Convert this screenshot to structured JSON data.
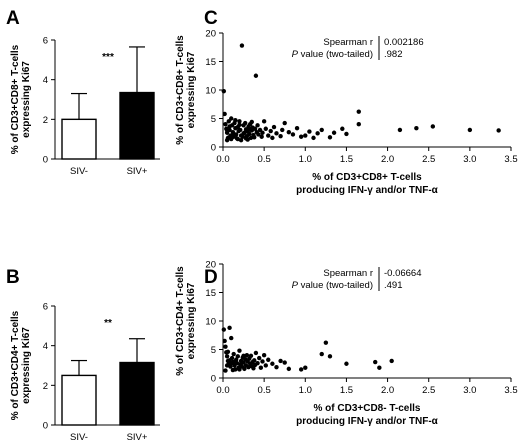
{
  "chart_data": [
    {
      "panel": "A",
      "type": "bar",
      "ylabel": [
        "% of CD3+CD8+ T-cells",
        "expressing Ki67"
      ],
      "categories": [
        "SIV-",
        "SIV+"
      ],
      "values": [
        2.0,
        3.35
      ],
      "errors": [
        1.3,
        2.3
      ],
      "fills": [
        "#ffffff",
        "#000000"
      ],
      "ylim": [
        0,
        6
      ],
      "yticks": [
        0,
        2,
        4,
        6
      ],
      "significance": "***"
    },
    {
      "panel": "B",
      "type": "bar",
      "ylabel": [
        "% of CD3+CD4+ T-cells",
        "expressing Ki67"
      ],
      "categories": [
        "SIV-",
        "SIV+"
      ],
      "values": [
        2.5,
        3.15
      ],
      "errors": [
        0.75,
        1.2
      ],
      "fills": [
        "#ffffff",
        "#000000"
      ],
      "ylim": [
        0,
        6
      ],
      "yticks": [
        0,
        2,
        4,
        6
      ],
      "significance": "**"
    },
    {
      "panel": "C",
      "type": "scatter",
      "xlabel": [
        "% of CD3+CD8+ T-cells",
        "producing IFN-γ and/or TNF-α"
      ],
      "ylabel": [
        "% of CD3+CD8+ T-cells",
        "expressing Ki67"
      ],
      "xlim": [
        0,
        3.5
      ],
      "ylim": [
        0,
        20
      ],
      "xticks": [
        "0.0",
        "0.5",
        "1.0",
        "1.5",
        "2.0",
        "2.5",
        "3.0",
        "3.5"
      ],
      "yticks": [
        0,
        5,
        10,
        15,
        20
      ],
      "stats": {
        "r_label": "Spearman r",
        "p_label_italic": "P",
        "p_label_rest": " value (two-tailed)",
        "r": "0.002186",
        "p": ".982"
      },
      "points": [
        [
          0.01,
          9.8
        ],
        [
          0.02,
          5.8
        ],
        [
          0.03,
          4.0
        ],
        [
          0.04,
          3.2
        ],
        [
          0.05,
          2.5
        ],
        [
          0.06,
          1.6
        ],
        [
          0.07,
          4.5
        ],
        [
          0.08,
          3.0
        ],
        [
          0.09,
          2.0
        ],
        [
          0.1,
          5.0
        ],
        [
          0.11,
          3.8
        ],
        [
          0.12,
          2.6
        ],
        [
          0.13,
          1.8
        ],
        [
          0.14,
          4.2
        ],
        [
          0.15,
          3.3
        ],
        [
          0.16,
          2.2
        ],
        [
          0.17,
          1.5
        ],
        [
          0.18,
          3.5
        ],
        [
          0.19,
          2.8
        ],
        [
          0.2,
          4.5
        ],
        [
          0.21,
          3.0
        ],
        [
          0.22,
          2.0
        ],
        [
          0.23,
          17.8
        ],
        [
          0.24,
          1.8
        ],
        [
          0.25,
          3.8
        ],
        [
          0.26,
          2.5
        ],
        [
          0.27,
          4.2
        ],
        [
          0.28,
          3.1
        ],
        [
          0.29,
          1.9
        ],
        [
          0.3,
          2.7
        ],
        [
          0.31,
          3.6
        ],
        [
          0.32,
          2.3
        ],
        [
          0.33,
          4.0
        ],
        [
          0.34,
          1.6
        ],
        [
          0.35,
          2.9
        ],
        [
          0.36,
          3.4
        ],
        [
          0.37,
          2.1
        ],
        [
          0.38,
          1.7
        ],
        [
          0.39,
          3.2
        ],
        [
          0.4,
          12.5
        ],
        [
          0.41,
          2.6
        ],
        [
          0.42,
          3.8
        ],
        [
          0.43,
          2.2
        ],
        [
          0.45,
          3.0
        ],
        [
          0.47,
          1.8
        ],
        [
          0.48,
          2.5
        ],
        [
          0.5,
          4.5
        ],
        [
          0.52,
          3.2
        ],
        [
          0.55,
          2.0
        ],
        [
          0.58,
          2.8
        ],
        [
          0.6,
          1.6
        ],
        [
          0.62,
          3.5
        ],
        [
          0.65,
          2.4
        ],
        [
          0.7,
          1.9
        ],
        [
          0.72,
          3.0
        ],
        [
          0.75,
          4.2
        ],
        [
          0.8,
          2.6
        ],
        [
          0.85,
          2.2
        ],
        [
          0.9,
          3.3
        ],
        [
          0.95,
          1.8
        ],
        [
          1.0,
          2.0
        ],
        [
          1.05,
          2.7
        ],
        [
          1.1,
          1.6
        ],
        [
          1.15,
          2.4
        ],
        [
          1.2,
          3.0
        ],
        [
          1.3,
          1.7
        ],
        [
          1.35,
          2.5
        ],
        [
          1.45,
          3.2
        ],
        [
          1.5,
          2.3
        ],
        [
          1.65,
          6.2
        ],
        [
          1.65,
          4.0
        ],
        [
          2.15,
          3.0
        ],
        [
          2.35,
          3.3
        ],
        [
          2.55,
          3.6
        ],
        [
          3.0,
          3.0
        ],
        [
          3.35,
          2.9
        ],
        [
          0.05,
          2.9
        ],
        [
          0.08,
          3.6
        ],
        [
          0.12,
          2.1
        ],
        [
          0.15,
          4.7
        ],
        [
          0.18,
          1.4
        ],
        [
          0.2,
          3.9
        ],
        [
          0.25,
          2.4
        ],
        [
          0.28,
          1.5
        ],
        [
          0.32,
          3.1
        ],
        [
          0.35,
          4.4
        ],
        [
          0.05,
          1.2
        ],
        [
          0.1,
          1.4
        ],
        [
          0.22,
          1.2
        ],
        [
          0.3,
          1.3
        ]
      ]
    },
    {
      "panel": "D",
      "type": "scatter",
      "xlabel": [
        "% of CD3+CD8- T-cells",
        "producing IFN-γ and/or TNF-α"
      ],
      "ylabel": [
        "% of CD3+CD4+ T-cells",
        "expressing Ki67"
      ],
      "xlim": [
        0,
        3.5
      ],
      "ylim": [
        0,
        20
      ],
      "xticks": [
        "0.0",
        "0.5",
        "1.0",
        "1.5",
        "2.0",
        "2.5",
        "3.0",
        "3.5"
      ],
      "yticks": [
        0,
        5,
        10,
        15,
        20
      ],
      "stats": {
        "r_label": "Spearman r",
        "p_label_italic": "P",
        "p_label_rest": " value (two-tailed)",
        "r": "-0.06664",
        "p": ".491"
      },
      "points": [
        [
          0.01,
          8.5
        ],
        [
          0.02,
          6.5
        ],
        [
          0.03,
          5.5
        ],
        [
          0.04,
          4.5
        ],
        [
          0.05,
          3.8
        ],
        [
          0.06,
          3.0
        ],
        [
          0.07,
          2.5
        ],
        [
          0.08,
          8.8
        ],
        [
          0.09,
          2.0
        ],
        [
          0.1,
          7.0
        ],
        [
          0.11,
          3.5
        ],
        [
          0.12,
          2.8
        ],
        [
          0.13,
          4.2
        ],
        [
          0.14,
          2.2
        ],
        [
          0.15,
          1.5
        ],
        [
          0.16,
          3.2
        ],
        [
          0.17,
          2.6
        ],
        [
          0.18,
          3.8
        ],
        [
          0.19,
          1.8
        ],
        [
          0.2,
          4.8
        ],
        [
          0.21,
          2.4
        ],
        [
          0.22,
          3.0
        ],
        [
          0.23,
          2.0
        ],
        [
          0.24,
          3.6
        ],
        [
          0.25,
          2.7
        ],
        [
          0.26,
          1.6
        ],
        [
          0.27,
          3.3
        ],
        [
          0.28,
          2.2
        ],
        [
          0.29,
          4.0
        ],
        [
          0.3,
          2.9
        ],
        [
          0.31,
          1.9
        ],
        [
          0.32,
          3.4
        ],
        [
          0.33,
          2.5
        ],
        [
          0.34,
          3.9
        ],
        [
          0.35,
          2.1
        ],
        [
          0.36,
          2.8
        ],
        [
          0.37,
          1.7
        ],
        [
          0.38,
          3.1
        ],
        [
          0.39,
          2.3
        ],
        [
          0.4,
          4.4
        ],
        [
          0.42,
          2.6
        ],
        [
          0.44,
          3.5
        ],
        [
          0.46,
          1.8
        ],
        [
          0.48,
          2.9
        ],
        [
          0.5,
          4.0
        ],
        [
          0.52,
          2.2
        ],
        [
          0.55,
          3.2
        ],
        [
          0.6,
          2.5
        ],
        [
          0.65,
          1.9
        ],
        [
          0.7,
          3.0
        ],
        [
          0.75,
          2.7
        ],
        [
          0.8,
          1.6
        ],
        [
          0.95,
          1.5
        ],
        [
          1.0,
          1.8
        ],
        [
          1.2,
          4.2
        ],
        [
          1.25,
          6.2
        ],
        [
          1.3,
          3.8
        ],
        [
          1.5,
          2.5
        ],
        [
          1.85,
          2.8
        ],
        [
          1.9,
          1.8
        ],
        [
          2.05,
          3.0
        ],
        [
          0.05,
          2.2
        ],
        [
          0.08,
          3.1
        ],
        [
          0.12,
          1.4
        ],
        [
          0.15,
          2.9
        ],
        [
          0.2,
          1.5
        ],
        [
          0.25,
          3.9
        ],
        [
          0.03,
          1.3
        ],
        [
          0.06,
          4.6
        ],
        [
          0.1,
          2.6
        ]
      ]
    }
  ]
}
